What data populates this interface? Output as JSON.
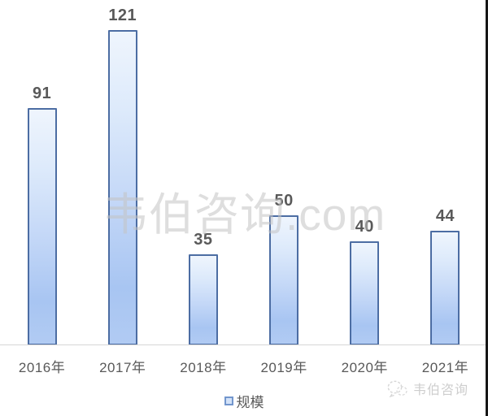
{
  "chart_data": {
    "type": "bar",
    "categories": [
      "2016年",
      "2017年",
      "2018年",
      "2019年",
      "2020年",
      "2021年"
    ],
    "values": [
      91,
      121,
      35,
      50,
      40,
      44
    ],
    "series": [
      {
        "name": "规模",
        "values": [
          91,
          121,
          35,
          50,
          40,
          44
        ]
      }
    ],
    "title": "",
    "xlabel": "",
    "ylabel": "",
    "ylim": [
      0,
      130
    ],
    "grid": false,
    "legend_position": "bottom",
    "data_labels": true,
    "colors": {
      "bar_fill_top": "#eff5fd",
      "bar_fill_bottom": "#a8c5f2",
      "bar_border": "#4c6da3",
      "label_text": "#595959",
      "axis_line": "#d6d6d6",
      "watermark_gray": "#c4c4c4"
    }
  },
  "legend": {
    "label": "规模"
  },
  "watermark": {
    "center_text": "韦伯咨询.com",
    "footer_text": "韦伯咨询"
  }
}
